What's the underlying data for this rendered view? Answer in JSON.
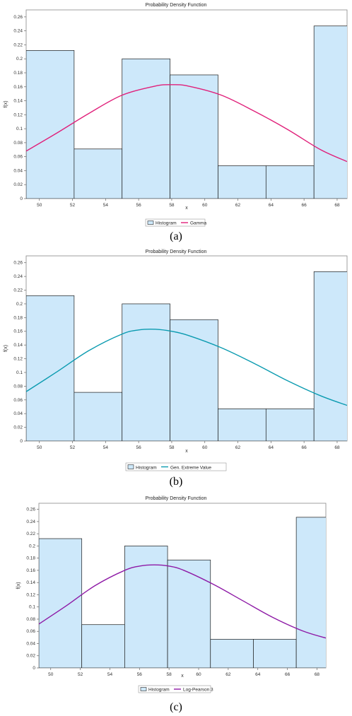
{
  "chart_data": [
    {
      "type": "bar",
      "title": "Probability Density Function",
      "xlabel": "x",
      "ylabel": "f(x)",
      "caption": "(a)",
      "bin_edges": [
        49.2,
        52.1,
        55.0,
        57.9,
        60.8,
        63.7,
        66.6,
        69.5
      ],
      "values": [
        0.212,
        0.071,
        0.2,
        0.177,
        0.047,
        0.047,
        0.247
      ],
      "xlim": [
        49.2,
        68.6
      ],
      "ylim": [
        0,
        0.27
      ],
      "xticks": [
        50,
        52,
        54,
        56,
        58,
        60,
        62,
        64,
        66,
        68
      ],
      "yticks": [
        0,
        0.02,
        0.04,
        0.06,
        0.08,
        0.1,
        0.12,
        0.14,
        0.16,
        0.18,
        0.2,
        0.22,
        0.24,
        0.26
      ],
      "series": [
        {
          "name": "Histogram",
          "kind": "histogram",
          "color": "#cde8fa"
        },
        {
          "name": "Gamma",
          "kind": "line",
          "color": "#e0207a",
          "x": [
            49.2,
            51.0,
            53.0,
            55.0,
            57.0,
            58.0,
            59.0,
            61.0,
            63.0,
            65.0,
            67.0,
            68.6
          ],
          "y": [
            0.068,
            0.093,
            0.122,
            0.148,
            0.161,
            0.163,
            0.161,
            0.148,
            0.125,
            0.099,
            0.07,
            0.053
          ]
        }
      ],
      "legend": "bottom"
    },
    {
      "type": "bar",
      "title": "Probability Density Function",
      "xlabel": "x",
      "ylabel": "f(x)",
      "caption": "(b)",
      "bin_edges": [
        49.2,
        52.1,
        55.0,
        57.9,
        60.8,
        63.7,
        66.6,
        69.5
      ],
      "values": [
        0.212,
        0.071,
        0.2,
        0.177,
        0.047,
        0.047,
        0.247
      ],
      "xlim": [
        49.2,
        68.6
      ],
      "ylim": [
        0,
        0.27
      ],
      "xticks": [
        50,
        52,
        54,
        56,
        58,
        60,
        62,
        64,
        66,
        68
      ],
      "yticks": [
        0,
        0.02,
        0.04,
        0.06,
        0.08,
        0.1,
        0.12,
        0.14,
        0.16,
        0.18,
        0.2,
        0.22,
        0.24,
        0.26
      ],
      "series": [
        {
          "name": "Histogram",
          "kind": "histogram",
          "color": "#cde8fa"
        },
        {
          "name": "Gen. Extreme Value",
          "kind": "line",
          "color": "#0b9bb0",
          "x": [
            49.2,
            51.0,
            53.0,
            55.0,
            56.0,
            57.0,
            58.0,
            59.0,
            61.0,
            63.0,
            65.0,
            67.0,
            68.6
          ],
          "y": [
            0.072,
            0.1,
            0.132,
            0.156,
            0.162,
            0.163,
            0.16,
            0.154,
            0.136,
            0.113,
            0.088,
            0.066,
            0.052
          ]
        }
      ],
      "legend": "bottom"
    },
    {
      "type": "bar",
      "title": "Probability Density Function",
      "xlabel": "x",
      "ylabel": "f(x)",
      "caption": "(c)",
      "bin_edges": [
        49.2,
        52.1,
        55.0,
        57.9,
        60.8,
        63.7,
        66.6,
        69.5
      ],
      "values": [
        0.212,
        0.071,
        0.2,
        0.177,
        0.047,
        0.047,
        0.247
      ],
      "xlim": [
        49.2,
        68.6
      ],
      "ylim": [
        0,
        0.27
      ],
      "xticks": [
        50,
        52,
        54,
        56,
        58,
        60,
        62,
        64,
        66,
        68
      ],
      "yticks": [
        0,
        0.02,
        0.04,
        0.06,
        0.08,
        0.1,
        0.12,
        0.14,
        0.16,
        0.18,
        0.2,
        0.22,
        0.24,
        0.26
      ],
      "series": [
        {
          "name": "Histogram",
          "kind": "histogram",
          "color": "#cde8fa"
        },
        {
          "name": "Log-Pearson 3",
          "kind": "line",
          "color": "#8e1aa6",
          "x": [
            49.2,
            51.0,
            53.0,
            55.0,
            56.0,
            57.0,
            58.0,
            59.0,
            61.0,
            63.0,
            65.0,
            67.0,
            68.6
          ],
          "y": [
            0.072,
            0.101,
            0.135,
            0.16,
            0.167,
            0.169,
            0.167,
            0.16,
            0.137,
            0.11,
            0.083,
            0.061,
            0.049
          ]
        }
      ],
      "legend": "bottom"
    }
  ]
}
